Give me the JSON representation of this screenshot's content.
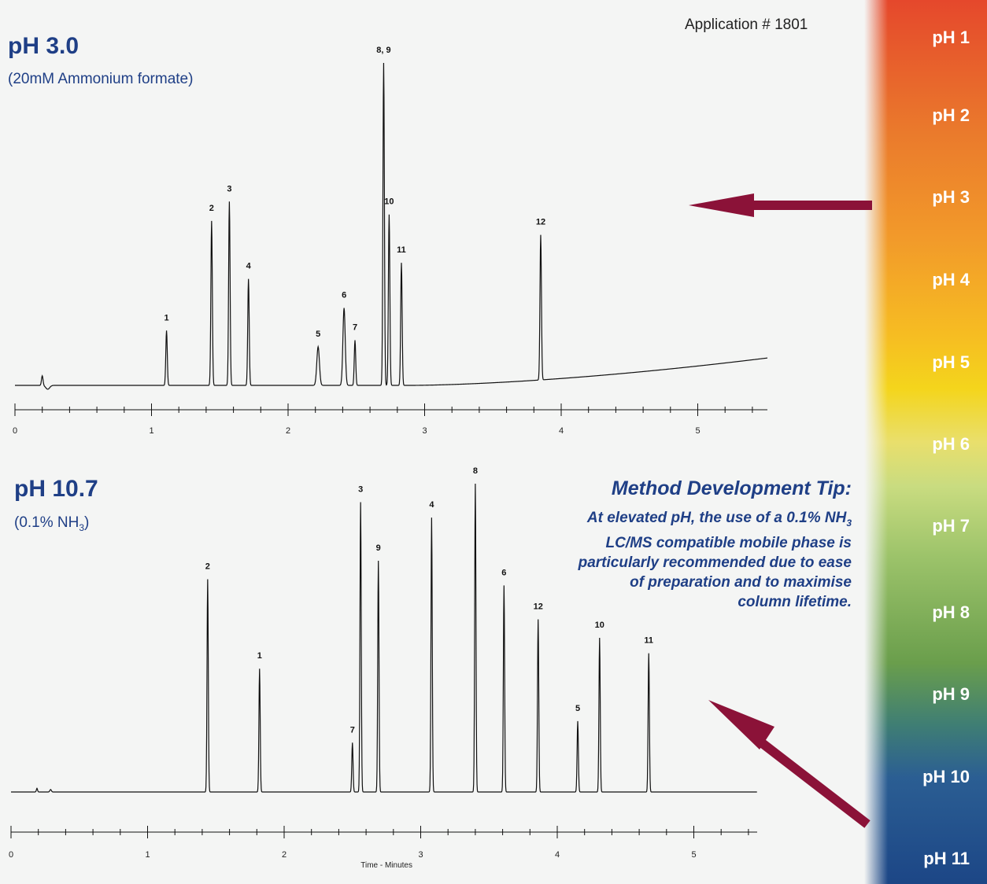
{
  "app_number": "Application # 1801",
  "ph_scale": {
    "labels": [
      "pH 1",
      "pH 2",
      "pH 3",
      "pH 4",
      "pH 5",
      "pH 6",
      "pH 7",
      "pH 8",
      "pH 9",
      "pH 10",
      "pH 11"
    ]
  },
  "tip": {
    "heading": "Method Development Tip:",
    "line1": "At elevated pH, the use of a 0.1% NH",
    "line1_sub": "3",
    "line2": "LC/MS compatible mobile phase is",
    "line3": "particularly recommended due to ease",
    "line4": "of preparation and to maximise",
    "line5": "column lifetime."
  },
  "arrow_color": "#8b1238",
  "chart_data": [
    {
      "type": "line",
      "title": "pH 3.0",
      "subtitle": "(20mM Ammonium formate)",
      "xlabel": "",
      "ylabel": "",
      "xlim": [
        0,
        5.5
      ],
      "ticks": [
        "0",
        "1",
        "2",
        "3",
        "4",
        "5"
      ],
      "peaks": [
        {
          "label": "1",
          "x": 1.11,
          "y": 0.17
        },
        {
          "label": "2",
          "x": 1.44,
          "y": 0.51
        },
        {
          "label": "3",
          "x": 1.57,
          "y": 0.57
        },
        {
          "label": "4",
          "x": 1.71,
          "y": 0.33
        },
        {
          "label": "5",
          "x": 2.22,
          "y": 0.12
        },
        {
          "label": "6",
          "x": 2.41,
          "y": 0.24
        },
        {
          "label": "7",
          "x": 2.49,
          "y": 0.14
        },
        {
          "label": "8, 9",
          "x": 2.7,
          "y": 1.0
        },
        {
          "label": "10",
          "x": 2.74,
          "y": 0.53
        },
        {
          "label": "11",
          "x": 2.83,
          "y": 0.38
        },
        {
          "label": "12",
          "x": 3.85,
          "y": 0.45
        }
      ]
    },
    {
      "type": "line",
      "title": "pH 10.7",
      "subtitle": "(0.1% NH",
      "subtitle_sub": "3",
      "subtitle_end": ")",
      "xlabel": "Time - Minutes",
      "ylabel": "",
      "xlim": [
        0,
        5.5
      ],
      "ticks": [
        "0",
        "1",
        "2",
        "3",
        "4",
        "5"
      ],
      "peaks": [
        {
          "label": "2",
          "x": 1.44,
          "y": 0.69
        },
        {
          "label": "1",
          "x": 1.82,
          "y": 0.4
        },
        {
          "label": "7",
          "x": 2.5,
          "y": 0.16
        },
        {
          "label": "3",
          "x": 2.56,
          "y": 0.94
        },
        {
          "label": "9",
          "x": 2.69,
          "y": 0.75
        },
        {
          "label": "4",
          "x": 3.08,
          "y": 0.89
        },
        {
          "label": "8",
          "x": 3.4,
          "y": 1.0
        },
        {
          "label": "6",
          "x": 3.61,
          "y": 0.67
        },
        {
          "label": "12",
          "x": 3.86,
          "y": 0.56
        },
        {
          "label": "5",
          "x": 4.15,
          "y": 0.23
        },
        {
          "label": "10",
          "x": 4.31,
          "y": 0.5
        },
        {
          "label": "11",
          "x": 4.67,
          "y": 0.45
        }
      ]
    }
  ]
}
